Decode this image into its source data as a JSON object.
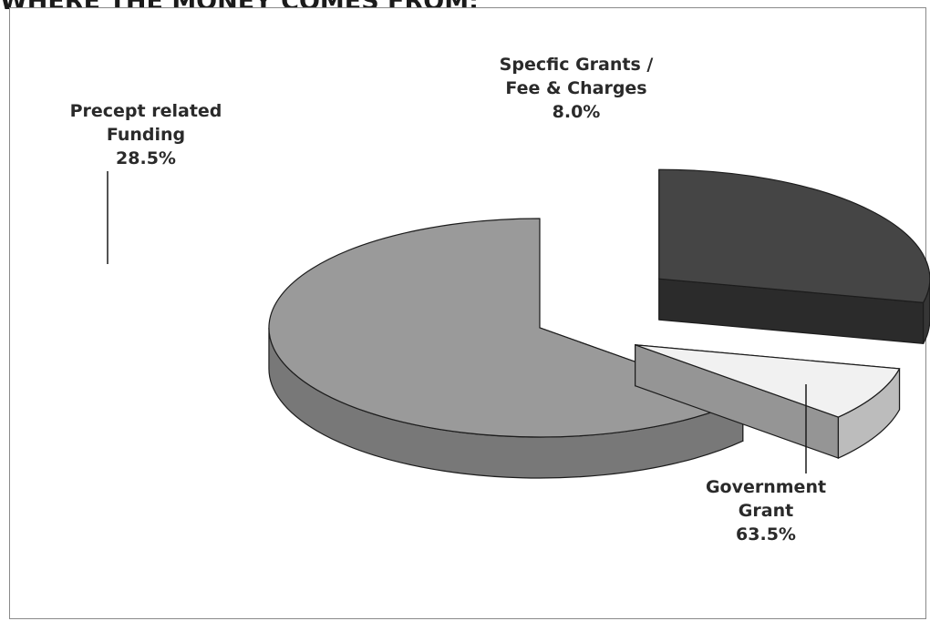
{
  "title": "WHERE THE MONEY COMES FROM:",
  "chart_data": {
    "type": "pie",
    "style": "3d-exploded",
    "title": "WHERE THE MONEY COMES FROM:",
    "slices": [
      {
        "name": "Precept related Funding",
        "label_lines": [
          "Precept related",
          "Funding"
        ],
        "value": 28.5,
        "value_label": "28.5%",
        "color": "#454545"
      },
      {
        "name": "Specfic Grants / Fee & Charges",
        "label_lines": [
          "Specfic Grants /",
          "Fee & Charges"
        ],
        "value": 8.0,
        "value_label": "8.0%",
        "color": "#f1f1f1"
      },
      {
        "name": "Government Grant",
        "label_lines": [
          "Government",
          "Grant"
        ],
        "value": 63.5,
        "value_label": "63.5%",
        "color": "#9a9a9a"
      }
    ]
  }
}
